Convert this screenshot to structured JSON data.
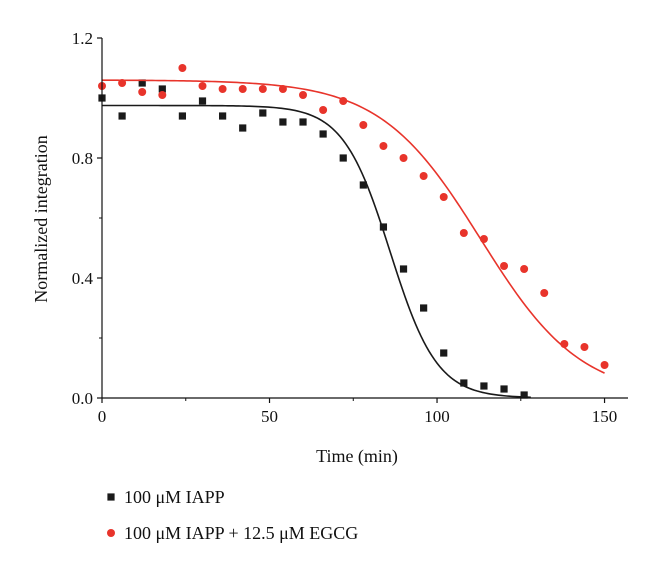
{
  "chart_data": {
    "type": "scatter",
    "xlabel": "Time (min)",
    "ylabel": "Normalized integration",
    "xlim": [
      0,
      157
    ],
    "ylim": [
      0,
      1.2
    ],
    "x_ticks": [
      0,
      50,
      100,
      150
    ],
    "y_ticks": [
      0.0,
      0.4,
      0.8,
      1.2
    ],
    "x_tick_labels": [
      "0",
      "50",
      "100",
      "150"
    ],
    "y_tick_labels": [
      "0.0",
      "0.4",
      "0.8",
      "1.2"
    ],
    "legend_position": "bottom-left",
    "grid": false,
    "series": [
      {
        "name": "100 μM IAPP",
        "color": "#1a1a1a",
        "marker": "square",
        "points": [
          [
            0,
            1.0
          ],
          [
            6,
            0.94
          ],
          [
            12,
            1.05
          ],
          [
            18,
            1.03
          ],
          [
            24,
            0.94
          ],
          [
            30,
            0.99
          ],
          [
            36,
            0.94
          ],
          [
            42,
            0.9
          ],
          [
            48,
            0.95
          ],
          [
            54,
            0.92
          ],
          [
            60,
            0.92
          ],
          [
            66,
            0.88
          ],
          [
            72,
            0.8
          ],
          [
            78,
            0.71
          ],
          [
            84,
            0.57
          ],
          [
            90,
            0.43
          ],
          [
            96,
            0.3
          ],
          [
            102,
            0.15
          ],
          [
            108,
            0.05
          ],
          [
            114,
            0.04
          ],
          [
            120,
            0.03
          ],
          [
            126,
            0.01
          ]
        ],
        "fit": {
          "type": "sigmoid",
          "top": 0.975,
          "bottom": 0.0,
          "x0": 86.0,
          "k": 7.0,
          "x_range": [
            0,
            128
          ]
        }
      },
      {
        "name": "100 μM IAPP + 12.5 μM EGCG",
        "color": "#e8342b",
        "marker": "circle",
        "points": [
          [
            0,
            1.04
          ],
          [
            6,
            1.05
          ],
          [
            12,
            1.02
          ],
          [
            18,
            1.01
          ],
          [
            24,
            1.1
          ],
          [
            30,
            1.04
          ],
          [
            36,
            1.03
          ],
          [
            42,
            1.03
          ],
          [
            48,
            1.03
          ],
          [
            54,
            1.03
          ],
          [
            60,
            1.01
          ],
          [
            66,
            0.96
          ],
          [
            72,
            0.99
          ],
          [
            78,
            0.91
          ],
          [
            84,
            0.84
          ],
          [
            90,
            0.8
          ],
          [
            96,
            0.74
          ],
          [
            102,
            0.67
          ],
          [
            108,
            0.55
          ],
          [
            114,
            0.53
          ],
          [
            120,
            0.44
          ],
          [
            126,
            0.43
          ],
          [
            132,
            0.35
          ],
          [
            138,
            0.18
          ],
          [
            144,
            0.17
          ],
          [
            150,
            0.11
          ]
        ],
        "fit": {
          "type": "sigmoid",
          "top": 1.06,
          "bottom": 0.0,
          "x0": 113.0,
          "k": 15.0,
          "x_range": [
            0,
            150
          ]
        }
      }
    ],
    "legend": [
      {
        "marker": "square",
        "color": "#1a1a1a",
        "label": "100 μM IAPP"
      },
      {
        "marker": "circle",
        "color": "#e8342b",
        "label": "100 μM IAPP + 12.5 μM EGCG"
      }
    ]
  }
}
